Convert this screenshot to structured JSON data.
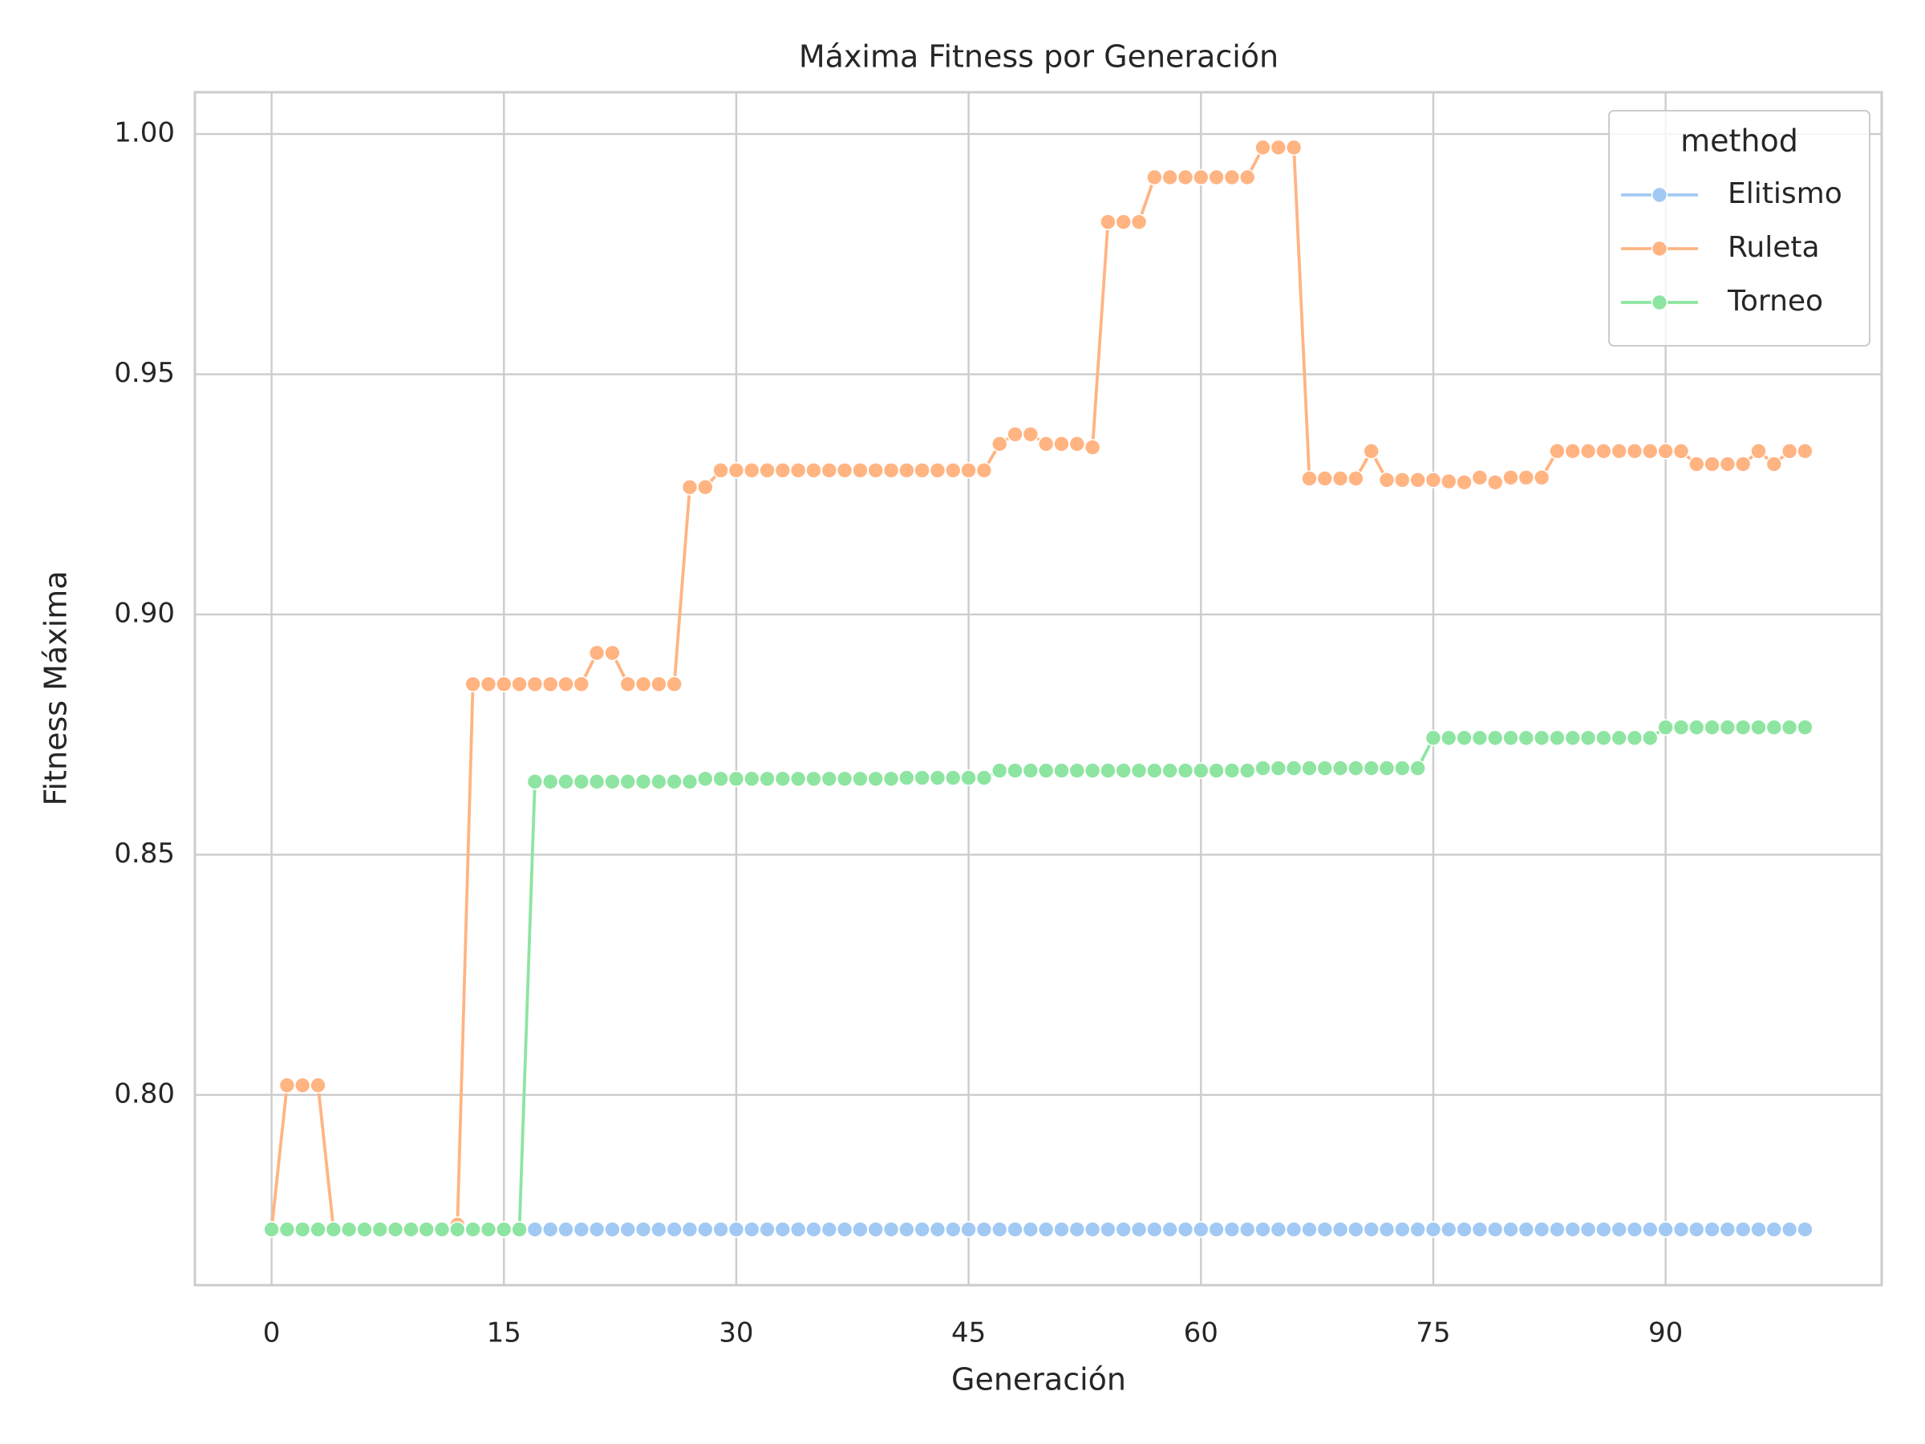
{
  "chart_data": {
    "type": "line",
    "title": "Máxima Fitness por Generación",
    "x_label": "Generación",
    "y_label": "Fitness Máxima",
    "legend_title": "method",
    "legend_position": "upper right",
    "grid": true,
    "x": [
      0,
      1,
      2,
      3,
      4,
      5,
      6,
      7,
      8,
      9,
      10,
      11,
      12,
      13,
      14,
      15,
      16,
      17,
      18,
      19,
      20,
      21,
      22,
      23,
      24,
      25,
      26,
      27,
      28,
      29,
      30,
      31,
      32,
      33,
      34,
      35,
      36,
      37,
      38,
      39,
      40,
      41,
      42,
      43,
      44,
      45,
      46,
      47,
      48,
      49,
      50,
      51,
      52,
      53,
      54,
      55,
      56,
      57,
      58,
      59,
      60,
      61,
      62,
      63,
      64,
      65,
      66,
      67,
      68,
      69,
      70,
      71,
      72,
      73,
      74,
      75,
      76,
      77,
      78,
      79,
      80,
      81,
      82,
      83,
      84,
      85,
      86,
      87,
      88,
      89,
      90,
      91,
      92,
      93,
      94,
      95,
      96,
      97,
      98,
      99
    ],
    "xlim": [
      -4.95,
      103.95
    ],
    "xticks": [
      0,
      15,
      30,
      45,
      60,
      75,
      90
    ],
    "ylim": [
      0.7604,
      1.0087
    ],
    "yticks": [
      {
        "value": 0.8,
        "label": "0.80"
      },
      0.85,
      {
        "value": 0.9,
        "label": "0.90"
      },
      0.95,
      {
        "value": 1.0,
        "label": "1.00"
      }
    ],
    "series": [
      {
        "name": "Elitismo",
        "color": "#a1c9f4",
        "values": [
          0.772,
          0.772,
          0.772,
          0.772,
          0.772,
          0.772,
          0.772,
          0.772,
          0.772,
          0.772,
          0.772,
          0.772,
          0.772,
          0.772,
          0.772,
          0.772,
          0.772,
          0.772,
          0.772,
          0.772,
          0.772,
          0.772,
          0.772,
          0.772,
          0.772,
          0.772,
          0.772,
          0.772,
          0.772,
          0.772,
          0.772,
          0.772,
          0.772,
          0.772,
          0.772,
          0.772,
          0.772,
          0.772,
          0.772,
          0.772,
          0.772,
          0.772,
          0.772,
          0.772,
          0.772,
          0.772,
          0.772,
          0.772,
          0.772,
          0.772,
          0.772,
          0.772,
          0.772,
          0.772,
          0.772,
          0.772,
          0.772,
          0.772,
          0.772,
          0.772,
          0.772,
          0.772,
          0.772,
          0.772,
          0.772,
          0.772,
          0.772,
          0.772,
          0.772,
          0.772,
          0.772,
          0.772,
          0.772,
          0.772,
          0.772,
          0.772,
          0.772,
          0.772,
          0.772,
          0.772,
          0.772,
          0.772,
          0.772,
          0.772,
          0.772,
          0.772,
          0.772,
          0.772,
          0.772,
          0.772,
          0.772,
          0.772,
          0.772,
          0.772,
          0.772,
          0.772,
          0.772,
          0.772,
          0.772,
          0.772
        ]
      },
      {
        "name": "Ruleta",
        "color": "#ffb482",
        "values": [
          0.772,
          0.802,
          0.802,
          0.802,
          0.772,
          0.772,
          0.772,
          0.772,
          0.772,
          0.772,
          0.772,
          0.772,
          0.773,
          0.8855,
          0.8855,
          0.8855,
          0.8855,
          0.8855,
          0.8855,
          0.8855,
          0.8855,
          0.892,
          0.892,
          0.8855,
          0.8855,
          0.8855,
          0.8855,
          0.9265,
          0.9265,
          0.93,
          0.93,
          0.93,
          0.93,
          0.93,
          0.93,
          0.93,
          0.93,
          0.93,
          0.93,
          0.93,
          0.93,
          0.93,
          0.93,
          0.93,
          0.93,
          0.93,
          0.93,
          0.9355,
          0.9375,
          0.9375,
          0.9355,
          0.9355,
          0.9355,
          0.9348,
          0.9817,
          0.9817,
          0.9817,
          0.991,
          0.991,
          0.991,
          0.991,
          0.991,
          0.991,
          0.991,
          0.9972,
          0.9972,
          0.9972,
          0.9283,
          0.9283,
          0.9283,
          0.9283,
          0.934,
          0.928,
          0.928,
          0.928,
          0.928,
          0.9277,
          0.9275,
          0.9285,
          0.9275,
          0.9285,
          0.9285,
          0.9285,
          0.934,
          0.934,
          0.934,
          0.934,
          0.934,
          0.934,
          0.934,
          0.934,
          0.934,
          0.9313,
          0.9313,
          0.9313,
          0.9313,
          0.934,
          0.9313,
          0.934,
          0.934
        ]
      },
      {
        "name": "Torneo",
        "color": "#8de5a1",
        "values": [
          0.772,
          0.772,
          0.772,
          0.772,
          0.772,
          0.772,
          0.772,
          0.772,
          0.772,
          0.772,
          0.772,
          0.772,
          0.772,
          0.772,
          0.772,
          0.772,
          0.772,
          0.8652,
          0.8652,
          0.8652,
          0.8652,
          0.8652,
          0.8652,
          0.8652,
          0.8652,
          0.8652,
          0.8652,
          0.8652,
          0.8658,
          0.8658,
          0.8658,
          0.8658,
          0.8658,
          0.8658,
          0.8658,
          0.8658,
          0.8658,
          0.8658,
          0.8658,
          0.8658,
          0.8658,
          0.866,
          0.866,
          0.866,
          0.866,
          0.866,
          0.866,
          0.8675,
          0.8675,
          0.8675,
          0.8675,
          0.8675,
          0.8675,
          0.8675,
          0.8675,
          0.8675,
          0.8675,
          0.8675,
          0.8675,
          0.8675,
          0.8675,
          0.8675,
          0.8675,
          0.8675,
          0.868,
          0.868,
          0.868,
          0.868,
          0.868,
          0.868,
          0.868,
          0.868,
          0.868,
          0.868,
          0.868,
          0.8743,
          0.8743,
          0.8743,
          0.8743,
          0.8743,
          0.8743,
          0.8743,
          0.8743,
          0.8743,
          0.8743,
          0.8743,
          0.8743,
          0.8743,
          0.8743,
          0.8743,
          0.8765,
          0.8765,
          0.8765,
          0.8765,
          0.8765,
          0.8765,
          0.8765,
          0.8765,
          0.8765,
          0.8765
        ]
      }
    ]
  }
}
